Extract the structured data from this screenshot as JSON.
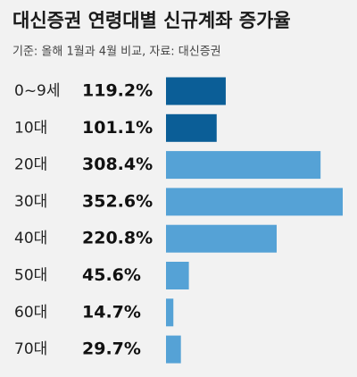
{
  "chart_data": {
    "type": "bar",
    "orientation": "horizontal",
    "title": "대신증권 연령대별 신규계좌 증가율",
    "subtitle": "기준: 올해 1월과 4월 비교, 자료: 대신증권",
    "categories": [
      "0~9세",
      "10대",
      "20대",
      "30대",
      "40대",
      "50대",
      "60대",
      "70대"
    ],
    "values": [
      119.2,
      101.1,
      308.4,
      352.6,
      220.8,
      45.6,
      14.7,
      29.7
    ],
    "value_labels": [
      "119.2%",
      "101.1%",
      "308.4%",
      "352.6%",
      "220.8%",
      "45.6%",
      "14.7%",
      "29.7%"
    ],
    "colors": [
      "#0b5e97",
      "#0b5e97",
      "#55a2d6",
      "#55a2d6",
      "#55a2d6",
      "#55a2d6",
      "#55a2d6",
      "#55a2d6"
    ]
  }
}
